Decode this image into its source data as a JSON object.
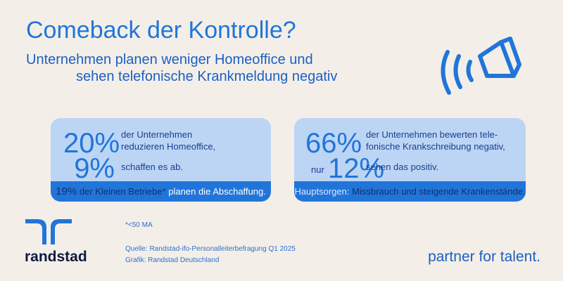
{
  "header": {
    "title": "Comeback der Kontrolle?",
    "subtitle_lines": [
      "Unternehmen planen weniger Homeoffice und",
      "sehen telefonische Krankmeldung negativ"
    ]
  },
  "cards": [
    {
      "stat_1": "20%",
      "text_1": [
        "der Unternehmen",
        "reduzieren Homeoffice,"
      ],
      "stat_2": "9%",
      "text_2": "schaffen es ab.",
      "footer": [
        "19%",
        "der Kleinen Betriebe*",
        "planen die Abschaffung."
      ]
    },
    {
      "stat_1": "66%",
      "text_1": [
        "der Unternehmen bewerten tele-",
        "fonische Krankschreibung negativ,"
      ],
      "prefix_2": "nur",
      "stat_2": "12%",
      "text_2": "sehen das positiv.",
      "footer": [
        "Hauptsorgen:",
        "Missbrauch und steigende Krankenstände."
      ]
    }
  ],
  "footnote": "*<50 MA",
  "source": [
    "Quelle: Randstad-ifo-Personalleiterbefragung Q1 2025",
    "Grafik: Randstad Deutschland"
  ],
  "logo": "randstad",
  "tagline": "partner for talent."
}
